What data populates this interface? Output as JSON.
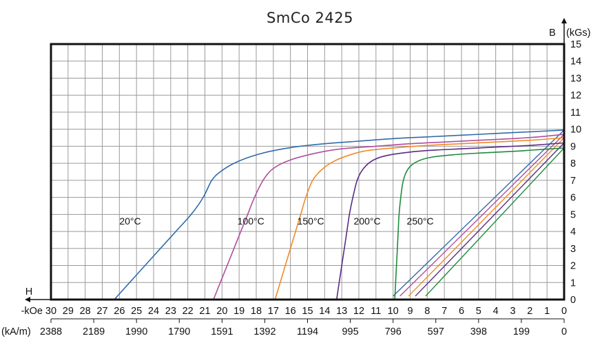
{
  "chart_data": {
    "type": "line",
    "title": "SmCo 2425",
    "y_axis": {
      "label": "B",
      "unit": "(kGs)",
      "range": [
        0,
        15
      ],
      "ticks": [
        "0",
        "1",
        "2",
        "3",
        "4",
        "5",
        "6",
        "7",
        "8",
        "9",
        "10",
        "11",
        "12",
        "13",
        "14",
        "15"
      ]
    },
    "x_axis": {
      "label": "H",
      "unit_koe": "-kOe",
      "unit_kam": "(kA/m)",
      "range": [
        0,
        30
      ],
      "direction": "reversed",
      "koe_ticks": [
        "30",
        "29",
        "28",
        "27",
        "26",
        "25",
        "24",
        "23",
        "22",
        "21",
        "20",
        "19",
        "18",
        "17",
        "16",
        "15",
        "14",
        "13",
        "12",
        "11",
        "10",
        "9",
        "8",
        "7",
        "6",
        "5",
        "4",
        "3",
        "2",
        "1",
        "0"
      ],
      "kam_ticks": [
        "2388",
        "2189",
        "1990",
        "1790",
        "1591",
        "1392",
        "1194",
        "995",
        "796",
        "597",
        "398",
        "199",
        "0"
      ]
    },
    "grid": true,
    "series": [
      {
        "name": "20°C",
        "color": "#2f6aab",
        "label_at": [
          26,
          4.4
        ],
        "normal_curve": [
          [
            26.3,
            0
          ],
          [
            25.4,
            1
          ],
          [
            24.5,
            2
          ],
          [
            23.6,
            3
          ],
          [
            22.7,
            4
          ],
          [
            21.8,
            5
          ],
          [
            21.1,
            6
          ],
          [
            20.6,
            7
          ],
          [
            20.1,
            7.5
          ],
          [
            19.3,
            8
          ],
          [
            18.3,
            8.4
          ],
          [
            17.2,
            8.7
          ],
          [
            15.8,
            8.95
          ],
          [
            14.0,
            9.15
          ],
          [
            12.0,
            9.3
          ],
          [
            10.0,
            9.45
          ],
          [
            8.0,
            9.55
          ],
          [
            6.0,
            9.65
          ],
          [
            4.0,
            9.75
          ],
          [
            2.0,
            9.85
          ],
          [
            0,
            9.95
          ]
        ],
        "intrinsic_line": [
          [
            10.0,
            0.2
          ],
          [
            0,
            9.95
          ]
        ]
      },
      {
        "name": "100°C",
        "color": "#b04d9d",
        "label_at": [
          19.1,
          4.4
        ],
        "normal_curve": [
          [
            20.5,
            0
          ],
          [
            20.1,
            1
          ],
          [
            19.7,
            2
          ],
          [
            19.3,
            3
          ],
          [
            18.9,
            4
          ],
          [
            18.5,
            5
          ],
          [
            18.1,
            6
          ],
          [
            17.6,
            7
          ],
          [
            17.0,
            7.7
          ],
          [
            16.0,
            8.2
          ],
          [
            14.5,
            8.6
          ],
          [
            13.0,
            8.85
          ],
          [
            11.0,
            9.0
          ],
          [
            9.0,
            9.15
          ],
          [
            7.0,
            9.25
          ],
          [
            5.0,
            9.35
          ],
          [
            3.0,
            9.45
          ],
          [
            1.5,
            9.55
          ],
          [
            0,
            9.7
          ]
        ],
        "intrinsic_line": [
          [
            9.6,
            0.2
          ],
          [
            0,
            9.7
          ]
        ]
      },
      {
        "name": "150°C",
        "color": "#f08a24",
        "label_at": [
          15.6,
          4.4
        ],
        "normal_curve": [
          [
            16.9,
            0
          ],
          [
            16.6,
            1
          ],
          [
            16.3,
            2
          ],
          [
            16.0,
            3
          ],
          [
            15.7,
            4
          ],
          [
            15.4,
            5
          ],
          [
            15.1,
            6
          ],
          [
            14.7,
            7
          ],
          [
            14.2,
            7.6
          ],
          [
            13.5,
            8.1
          ],
          [
            12.5,
            8.5
          ],
          [
            11.5,
            8.75
          ],
          [
            10.0,
            8.9
          ],
          [
            8.0,
            9.05
          ],
          [
            6.0,
            9.15
          ],
          [
            4.0,
            9.25
          ],
          [
            2.0,
            9.35
          ],
          [
            0,
            9.5
          ]
        ],
        "intrinsic_line": [
          [
            9.1,
            0.2
          ],
          [
            0,
            9.5
          ]
        ]
      },
      {
        "name": "200°C",
        "color": "#5a2b82",
        "label_at": [
          12.3,
          4.4
        ],
        "normal_curve": [
          [
            13.3,
            0
          ],
          [
            13.15,
            1
          ],
          [
            13.0,
            2
          ],
          [
            12.85,
            3
          ],
          [
            12.7,
            4
          ],
          [
            12.55,
            5
          ],
          [
            12.35,
            6
          ],
          [
            12.1,
            7
          ],
          [
            11.8,
            7.6
          ],
          [
            11.3,
            8.1
          ],
          [
            10.6,
            8.4
          ],
          [
            9.5,
            8.6
          ],
          [
            8.0,
            8.75
          ],
          [
            6.0,
            8.85
          ],
          [
            4.0,
            8.95
          ],
          [
            2.0,
            9.05
          ],
          [
            0,
            9.2
          ]
        ],
        "intrinsic_line": [
          [
            8.7,
            0.2
          ],
          [
            0,
            9.2
          ]
        ]
      },
      {
        "name": "250°C",
        "color": "#1f8a3c",
        "label_at": [
          9.2,
          4.4
        ],
        "normal_curve": [
          [
            9.9,
            0
          ],
          [
            9.85,
            1
          ],
          [
            9.8,
            2
          ],
          [
            9.75,
            3
          ],
          [
            9.7,
            4
          ],
          [
            9.65,
            5
          ],
          [
            9.55,
            6
          ],
          [
            9.4,
            7
          ],
          [
            9.1,
            7.7
          ],
          [
            8.6,
            8.1
          ],
          [
            7.8,
            8.35
          ],
          [
            6.5,
            8.5
          ],
          [
            5.0,
            8.6
          ],
          [
            3.0,
            8.7
          ],
          [
            1.5,
            8.8
          ],
          [
            0,
            8.9
          ]
        ],
        "intrinsic_line": [
          [
            8.1,
            0.2
          ],
          [
            0,
            8.9
          ]
        ]
      }
    ]
  }
}
